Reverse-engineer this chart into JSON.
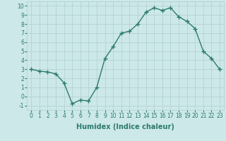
{
  "x": [
    0,
    1,
    2,
    3,
    4,
    5,
    6,
    7,
    8,
    9,
    10,
    11,
    12,
    13,
    14,
    15,
    16,
    17,
    18,
    19,
    20,
    21,
    22,
    23
  ],
  "y": [
    3.0,
    2.8,
    2.7,
    2.5,
    1.5,
    -0.8,
    -0.4,
    -0.5,
    1.0,
    4.2,
    5.5,
    7.0,
    7.2,
    8.0,
    9.3,
    9.8,
    9.5,
    9.8,
    8.8,
    8.3,
    7.5,
    5.0,
    4.2,
    3.0
  ],
  "xlabel": "Humidex (Indice chaleur)",
  "xlim": [
    -0.5,
    23.5
  ],
  "ylim": [
    -1.5,
    10.5
  ],
  "yticks": [
    -1,
    0,
    1,
    2,
    3,
    4,
    5,
    6,
    7,
    8,
    9,
    10
  ],
  "xticks": [
    0,
    1,
    2,
    3,
    4,
    5,
    6,
    7,
    8,
    9,
    10,
    11,
    12,
    13,
    14,
    15,
    16,
    17,
    18,
    19,
    20,
    21,
    22,
    23
  ],
  "line_color": "#2d7a6e",
  "marker": "+",
  "markersize": 4,
  "linewidth": 1.0,
  "bg_color": "#cce8e8",
  "grid_color": "#b0cfcf",
  "tick_color": "#2d7a6e",
  "label_color": "#2d7a6e",
  "tick_fontsize": 5.5,
  "xlabel_fontsize": 7.0
}
